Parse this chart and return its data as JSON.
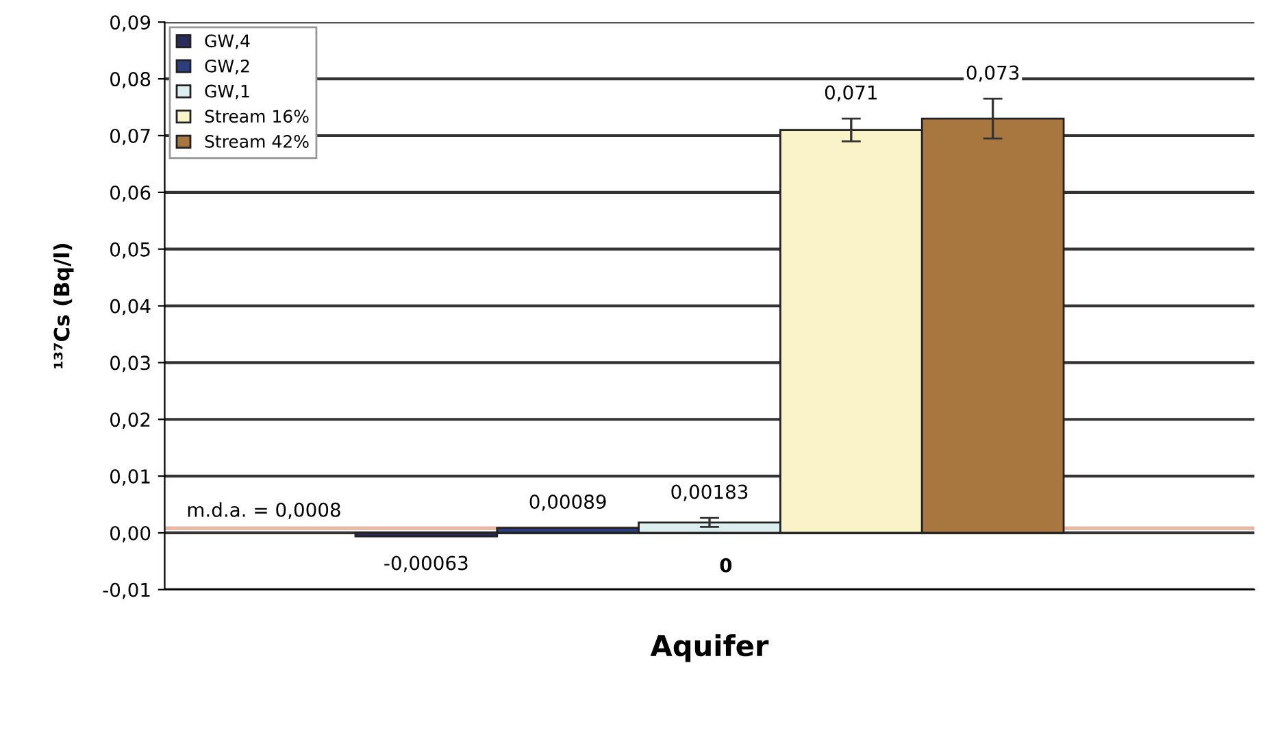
{
  "chart_data": {
    "type": "bar",
    "xlabel": "Aquifer",
    "ylabel": "¹³⁷Cs (Bq/l)",
    "categories": [
      null
    ],
    "series": [
      {
        "name": "GW,4",
        "color": "#2b2b5c",
        "values": [
          -0.00063
        ],
        "value_labels": [
          "-0,00063"
        ]
      },
      {
        "name": "GW,2",
        "color": "#2c3f7c",
        "values": [
          0.00089
        ],
        "value_labels": [
          "0,00089"
        ]
      },
      {
        "name": "GW,1",
        "color": "#dcefee",
        "values": [
          0.00183
        ],
        "errors": [
          0.0008
        ],
        "value_labels": [
          "0,00183"
        ]
      },
      {
        "name": "Stream 16%",
        "color": "#fbf3c8",
        "values": [
          0.071
        ],
        "errors": [
          0.002
        ],
        "value_labels": [
          "0,071"
        ]
      },
      {
        "name": "Stream 42%",
        "color": "#a8763f",
        "values": [
          0.073
        ],
        "errors": [
          0.0035
        ],
        "value_labels": [
          "0,073"
        ]
      }
    ],
    "ylim": [
      -0.01,
      0.09
    ],
    "yticks": [
      {
        "value": -0.01,
        "label": "-0,01"
      },
      {
        "value": 0,
        "label": "0,00"
      },
      {
        "value": 0.01,
        "label": "0,01"
      },
      {
        "value": 0.02,
        "label": "0,02"
      },
      {
        "value": 0.03,
        "label": "0,03"
      },
      {
        "value": 0.04,
        "label": "0,04"
      },
      {
        "value": 0.05,
        "label": "0,05"
      },
      {
        "value": 0.06,
        "label": "0,06"
      },
      {
        "value": 0.07,
        "label": "0,07"
      },
      {
        "value": 0.08,
        "label": "0,08"
      },
      {
        "value": 0.09,
        "label": "0,09"
      }
    ],
    "ref_lines": [
      {
        "axis": "y",
        "value": 0.0008,
        "label": "m.d.a. = 0,0008",
        "color": "#e8b8a4"
      }
    ],
    "annotations": [
      "0"
    ],
    "grid": "y",
    "legend": "top left"
  }
}
